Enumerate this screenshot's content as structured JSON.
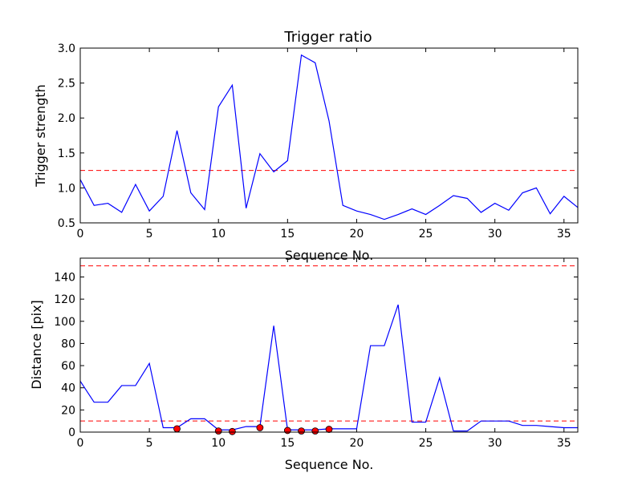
{
  "chart_data": [
    {
      "type": "line",
      "title": "Trigger ratio",
      "xlabel": "Sequence No.",
      "ylabel": "Trigger strength",
      "xlim": [
        0,
        36
      ],
      "ylim": [
        0.5,
        3.0
      ],
      "xticks": [
        0,
        5,
        10,
        15,
        20,
        25,
        30,
        35
      ],
      "yticks": [
        0.5,
        1.0,
        1.5,
        2.0,
        2.5,
        3.0
      ],
      "xtick_labels": [
        "0",
        "5",
        "10",
        "15",
        "20",
        "25",
        "30",
        "35"
      ],
      "ytick_labels": [
        "0.5",
        "1.0",
        "1.5",
        "2.0",
        "2.5",
        "3.0"
      ],
      "grid": false,
      "line_color": "#0000ff",
      "threshold_color": "#ff0000",
      "thresholds": [
        1.25
      ],
      "series": [
        {
          "x": [
            0,
            1,
            2,
            3,
            4,
            5,
            6,
            7,
            8,
            9,
            10,
            11,
            12,
            13,
            14,
            15,
            16,
            17,
            18,
            19,
            20,
            21,
            22,
            23,
            24,
            25,
            26,
            27,
            28,
            29,
            30,
            31,
            32,
            33,
            34,
            35,
            36
          ],
          "values": [
            1.12,
            0.75,
            0.78,
            0.65,
            1.05,
            0.67,
            0.88,
            1.82,
            0.93,
            0.69,
            2.16,
            2.47,
            0.71,
            1.49,
            1.23,
            1.39,
            2.9,
            2.79,
            1.96,
            0.75,
            0.67,
            0.62,
            0.55,
            0.62,
            0.7,
            0.62,
            0.75,
            0.89,
            0.85,
            0.65,
            0.78,
            0.68,
            0.93,
            1.0,
            0.63,
            0.88,
            0.72
          ]
        }
      ]
    },
    {
      "type": "line",
      "title": "",
      "xlabel": "Sequence No.",
      "ylabel": "Distance [pix]",
      "xlim": [
        0,
        36
      ],
      "ylim": [
        0,
        157
      ],
      "xticks": [
        0,
        5,
        10,
        15,
        20,
        25,
        30,
        35
      ],
      "yticks": [
        0,
        20,
        40,
        60,
        80,
        100,
        120,
        140
      ],
      "xtick_labels": [
        "0",
        "5",
        "10",
        "15",
        "20",
        "25",
        "30",
        "35"
      ],
      "ytick_labels": [
        "0",
        "20",
        "40",
        "60",
        "80",
        "100",
        "120",
        "140"
      ],
      "grid": false,
      "line_color": "#0000ff",
      "threshold_color": "#ff0000",
      "marker_color": "#ff0000",
      "thresholds": [
        10,
        150
      ],
      "series": [
        {
          "x": [
            0,
            1,
            2,
            3,
            4,
            5,
            6,
            7,
            8,
            9,
            10,
            11,
            12,
            13,
            14,
            15,
            16,
            17,
            18,
            19,
            20,
            21,
            22,
            23,
            24,
            25,
            26,
            27,
            28,
            29,
            30,
            31,
            32,
            33,
            34,
            35,
            36
          ],
          "values": [
            46,
            27,
            27,
            42,
            42,
            62,
            4,
            4,
            12,
            12,
            2,
            2,
            5,
            5,
            96,
            2,
            2,
            2,
            3,
            3,
            3,
            78,
            78,
            115,
            9,
            9,
            49,
            1,
            1,
            10,
            10,
            10,
            6,
            6,
            5,
            4,
            4
          ]
        }
      ],
      "markers": {
        "x": [
          7,
          10,
          11,
          13,
          15,
          16,
          17,
          18
        ],
        "y": [
          3,
          1,
          0.5,
          4,
          1.5,
          1,
          1,
          2.5
        ]
      }
    }
  ]
}
